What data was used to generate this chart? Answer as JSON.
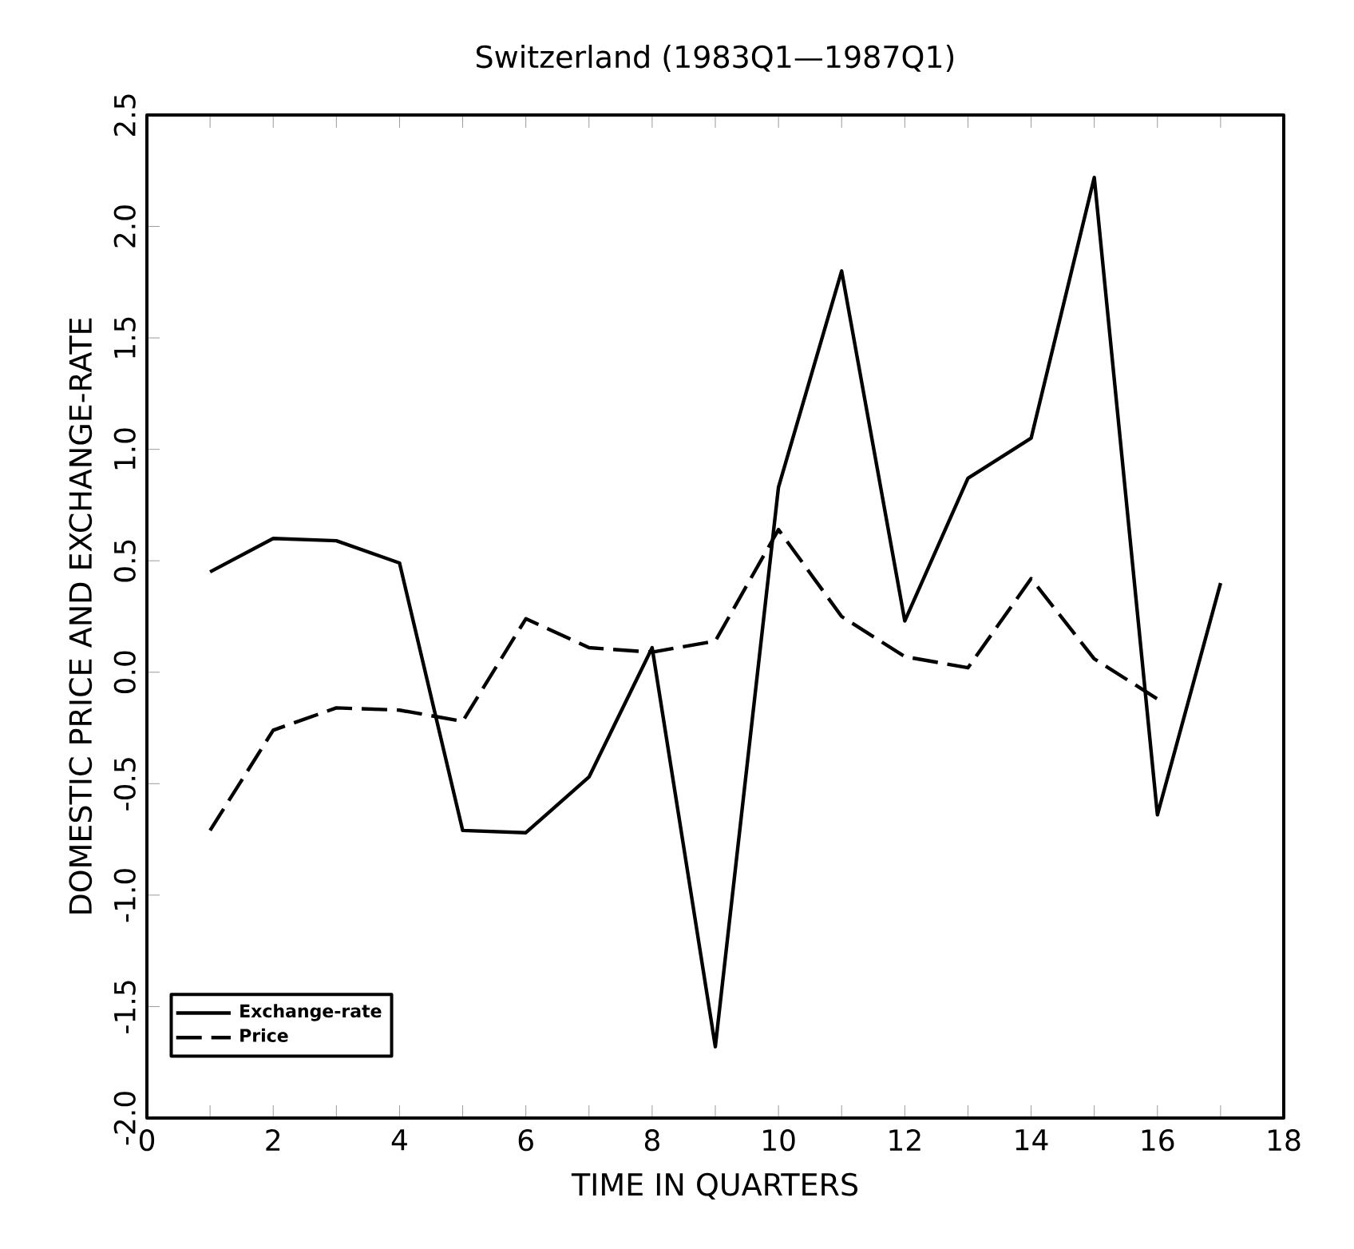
{
  "chart_data": {
    "type": "line",
    "title": "Switzerland (1983Q1—1987Q1)",
    "xlabel": "TIME IN QUARTERS",
    "ylabel": "DOMESTIC PRICE AND EXCHANGE-RATE",
    "x": [
      1,
      2,
      3,
      4,
      5,
      6,
      7,
      8,
      9,
      10,
      11,
      12,
      13,
      14,
      15,
      16,
      17
    ],
    "series": [
      {
        "name": "Exchange-rate",
        "color": "#000000",
        "line_style": "solid",
        "values": [
          0.45,
          0.6,
          0.59,
          0.49,
          -0.71,
          -0.72,
          -0.47,
          0.11,
          -1.68,
          0.83,
          1.8,
          0.23,
          0.87,
          1.05,
          2.22,
          -0.64,
          0.4
        ]
      },
      {
        "name": "Price",
        "color": "#000000",
        "line_style": "dashed",
        "values": [
          -0.71,
          -0.26,
          -0.16,
          -0.17,
          -0.22,
          0.24,
          0.11,
          0.09,
          0.14,
          0.64,
          0.25,
          0.07,
          0.02,
          0.42,
          0.06,
          -0.12,
          null
        ]
      }
    ],
    "xlim": [
      0,
      18
    ],
    "xticks": [
      0,
      {
        "value": 1,
        "label": null
      },
      2,
      {
        "value": 3,
        "label": null
      },
      4,
      {
        "value": 5,
        "label": null
      },
      6,
      {
        "value": 7,
        "label": null
      },
      8,
      {
        "value": 9,
        "label": null
      },
      10,
      {
        "value": 11,
        "label": null
      },
      12,
      {
        "value": 13,
        "label": null
      },
      14,
      {
        "value": 15,
        "label": null
      },
      16,
      {
        "value": 17,
        "label": null
      },
      18
    ],
    "ylim": [
      -2.0,
      2.5
    ],
    "yticks": [
      {
        "value": -2,
        "label": "-2.0"
      },
      -1.5,
      {
        "value": -1,
        "label": "-1.0"
      },
      -0.5,
      {
        "value": 0,
        "label": "0.0"
      },
      0.5,
      {
        "value": 1,
        "label": "1.0"
      },
      1.5,
      {
        "value": 2,
        "label": "2.0"
      },
      2.5
    ],
    "legend": "bottom left",
    "grid": false,
    "marker": "none"
  }
}
